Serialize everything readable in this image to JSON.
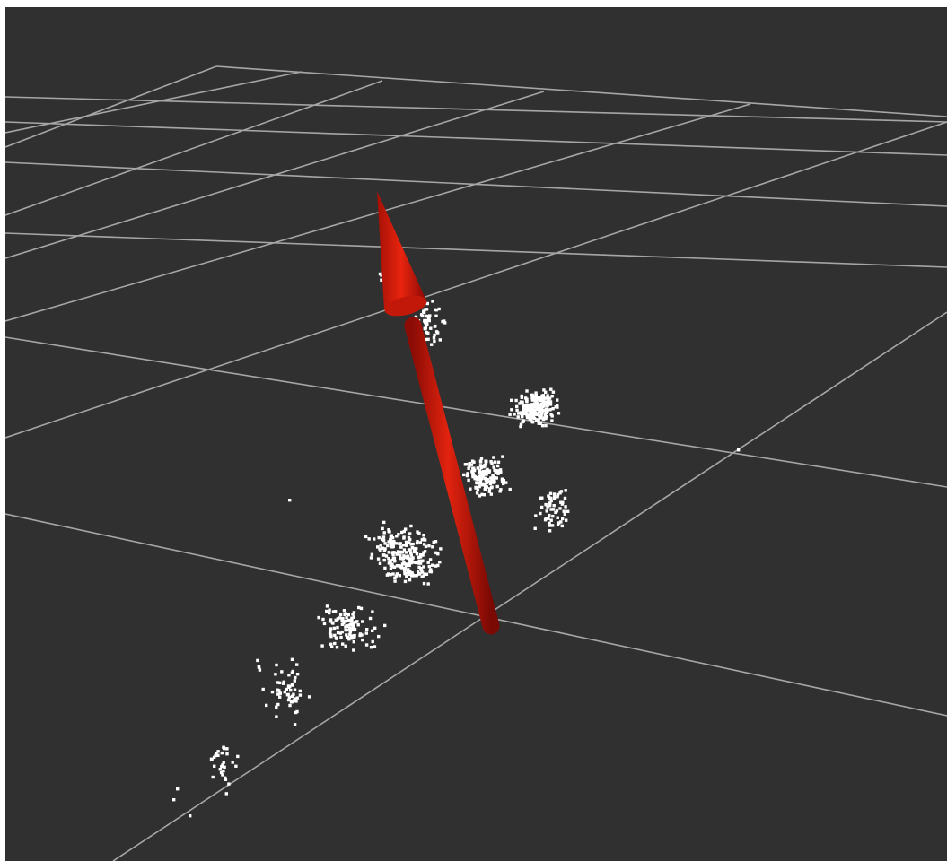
{
  "viewport": {
    "background_color": "#303030",
    "grid_color": "#a6a6a6",
    "point_color": "#ffffff",
    "arrow_color": "#d81a0f"
  },
  "elements": {
    "grid": "grid-plane",
    "point_cloud": "point-cloud",
    "arrow": "pose-arrow"
  }
}
